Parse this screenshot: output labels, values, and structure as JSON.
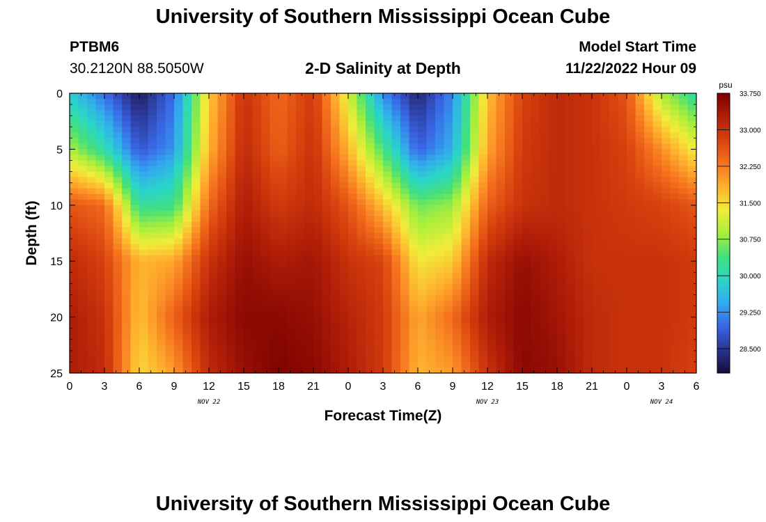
{
  "page": {
    "title": "University of Southern Mississippi Ocean Cube",
    "footer_title": "University of Southern Mississippi Ocean Cube",
    "station_id": "PTBM6",
    "station_coords": "30.2120N  88.5050W",
    "plot_title": "2-D Salinity at Depth",
    "model_start_label": "Model Start Time",
    "model_start_value": "11/22/2022 Hour 09"
  },
  "colors": {
    "scale": [
      "#1a0a3a",
      "#2a3590",
      "#3a66e6",
      "#33aaee",
      "#2ad6c8",
      "#44e07a",
      "#a8ee3a",
      "#f2ec3a",
      "#ffb02e",
      "#f5731e",
      "#d8420e",
      "#b11e08",
      "#7a0000"
    ]
  },
  "chart_data": {
    "type": "heatmap",
    "title": "2-D Salinity at Depth",
    "xlabel": "Forecast Time(Z)",
    "ylabel": "Depth (ft)",
    "x_tick_labels": [
      "0",
      "3",
      "6",
      "9",
      "12",
      "15",
      "18",
      "21",
      "0",
      "3",
      "6",
      "9",
      "12",
      "15",
      "18",
      "21",
      "0",
      "3",
      "6"
    ],
    "x_range_hours": [
      0,
      54
    ],
    "x_tick_step_hours": 3,
    "date_labels": [
      {
        "hour": 12,
        "label": "NOV 22"
      },
      {
        "hour": 36,
        "label": "NOV 23"
      },
      {
        "hour": 51,
        "label": "NOV 24"
      }
    ],
    "y_ticks": [
      0,
      5,
      10,
      15,
      20,
      25
    ],
    "ylim": [
      0,
      25
    ],
    "colorbar": {
      "unit": "psu",
      "ticks": [
        "33.750",
        "33.000",
        "32.250",
        "31.500",
        "30.750",
        "30.000",
        "29.250",
        "28.500"
      ],
      "min": 28.0,
      "max": 33.75
    },
    "grid_time_hours": [
      0,
      3,
      6,
      9,
      12,
      15,
      18,
      21,
      24,
      27,
      30,
      33,
      36,
      39,
      42,
      45,
      48,
      51,
      54
    ],
    "grid_depth_ft": [
      0,
      5,
      10,
      15,
      20,
      25
    ],
    "salinity_psu": [
      [
        29.8,
        29.0,
        28.2,
        29.0,
        31.6,
        33.0,
        32.4,
        32.9,
        31.2,
        29.2,
        28.3,
        29.2,
        31.7,
        32.8,
        33.1,
        33.0,
        32.6,
        30.9,
        30.1
      ],
      [
        30.9,
        30.1,
        28.8,
        29.3,
        31.8,
        33.1,
        32.5,
        33.0,
        31.8,
        30.4,
        28.9,
        29.5,
        31.9,
        32.9,
        33.1,
        33.0,
        32.8,
        32.1,
        31.3
      ],
      [
        32.6,
        32.4,
        30.2,
        30.3,
        32.4,
        33.3,
        32.9,
        33.1,
        32.6,
        31.7,
        30.6,
        30.8,
        32.5,
        33.0,
        33.1,
        33.0,
        32.9,
        32.8,
        32.6
      ],
      [
        33.1,
        32.8,
        31.8,
        31.9,
        33.0,
        33.5,
        33.3,
        33.4,
        33.0,
        32.8,
        31.4,
        31.6,
        33.1,
        33.5,
        33.3,
        33.0,
        33.0,
        33.0,
        32.9
      ],
      [
        33.3,
        33.0,
        31.7,
        32.5,
        33.3,
        33.6,
        33.6,
        33.5,
        33.2,
        32.9,
        31.9,
        32.4,
        33.3,
        33.6,
        33.4,
        33.1,
        33.0,
        33.0,
        32.9
      ],
      [
        33.3,
        33.1,
        31.5,
        32.0,
        33.1,
        33.5,
        33.7,
        33.6,
        33.3,
        32.9,
        31.8,
        32.0,
        33.0,
        33.6,
        33.5,
        33.1,
        33.0,
        33.0,
        32.8
      ]
    ]
  }
}
